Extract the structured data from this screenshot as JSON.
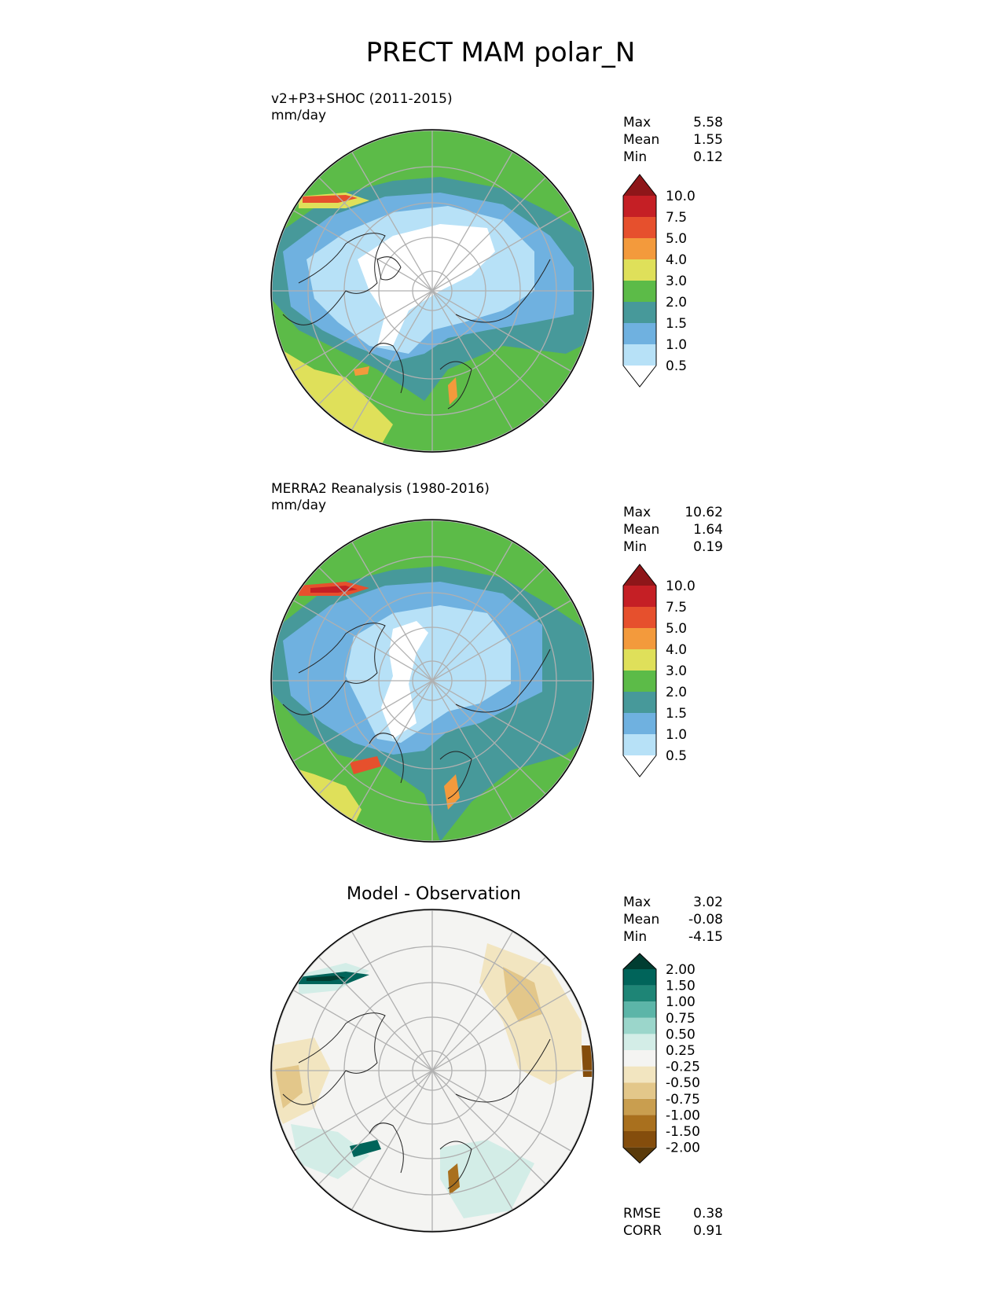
{
  "title": "PRECT MAM polar_N",
  "colors": {
    "precip": [
      "#ffffff",
      "#b7e1f7",
      "#6fb1e0",
      "#47999a",
      "#5cbb48",
      "#dfe05a",
      "#f39a3c",
      "#e6502d",
      "#c51f25",
      "#8e1619"
    ],
    "diff": [
      "#5a3a0a",
      "#844d0c",
      "#a9701e",
      "#c99e4f",
      "#e3c78a",
      "#f2e5c0",
      "#f4f4f2",
      "#d3ede7",
      "#9bd6cb",
      "#5cb5a8",
      "#1e8576",
      "#00645a",
      "#003d31"
    ]
  },
  "panels": [
    {
      "name": "test",
      "title_line1": "v2+P3+SHOC (2011-2015)",
      "title_line2": "mm/day",
      "center_title": "",
      "stats": [
        {
          "label": "Max",
          "value": "5.58"
        },
        {
          "label": "Mean",
          "value": "1.55"
        },
        {
          "label": "Min",
          "value": "0.12"
        }
      ],
      "levels": [
        "0.5",
        "1.0",
        "1.5",
        "2.0",
        "3.0",
        "4.0",
        "5.0",
        "7.5",
        "10.0"
      ]
    },
    {
      "name": "reference",
      "title_line1": "MERRA2 Reanalysis (1980-2016)",
      "title_line2": "mm/day",
      "center_title": "",
      "stats": [
        {
          "label": "Max",
          "value": "10.62"
        },
        {
          "label": "Mean",
          "value": "1.64"
        },
        {
          "label": "Min",
          "value": "0.19"
        }
      ],
      "levels": [
        "0.5",
        "1.0",
        "1.5",
        "2.0",
        "3.0",
        "4.0",
        "5.0",
        "7.5",
        "10.0"
      ]
    },
    {
      "name": "difference",
      "title_line1": "",
      "title_line2": "",
      "center_title": "Model - Observation",
      "stats": [
        {
          "label": "Max",
          "value": "3.02"
        },
        {
          "label": "Mean",
          "value": "-0.08"
        },
        {
          "label": "Min",
          "value": "-4.15"
        }
      ],
      "levels": [
        "-2.00",
        "-1.50",
        "-1.00",
        "-0.75",
        "-0.50",
        "-0.25",
        "0.25",
        "0.50",
        "0.75",
        "1.00",
        "1.50",
        "2.00"
      ],
      "metrics": [
        {
          "label": "RMSE",
          "value": "0.38"
        },
        {
          "label": "CORR",
          "value": "0.91"
        }
      ]
    }
  ],
  "chart_data": [
    {
      "type": "heatmap",
      "projection": "north polar stereographic",
      "field": "PRECT",
      "season": "MAM",
      "units": "mm/day",
      "source": "v2+P3+SHOC (2011-2015)",
      "contour_levels": [
        0.5,
        1.0,
        1.5,
        2.0,
        3.0,
        4.0,
        5.0,
        7.5,
        10.0
      ],
      "max": 5.58,
      "mean": 1.55,
      "min": 0.12,
      "grid": true
    },
    {
      "type": "heatmap",
      "projection": "north polar stereographic",
      "field": "PRECT",
      "season": "MAM",
      "units": "mm/day",
      "source": "MERRA2 Reanalysis (1980-2016)",
      "contour_levels": [
        0.5,
        1.0,
        1.5,
        2.0,
        3.0,
        4.0,
        5.0,
        7.5,
        10.0
      ],
      "max": 10.62,
      "mean": 1.64,
      "min": 0.19,
      "grid": true
    },
    {
      "type": "heatmap",
      "projection": "north polar stereographic",
      "field": "PRECT difference",
      "title": "Model - Observation",
      "contour_levels": [
        -2.0,
        -1.5,
        -1.0,
        -0.75,
        -0.5,
        -0.25,
        0.25,
        0.5,
        0.75,
        1.0,
        1.5,
        2.0
      ],
      "max": 3.02,
      "mean": -0.08,
      "min": -4.15,
      "rmse": 0.38,
      "corr": 0.91,
      "grid": true
    }
  ]
}
